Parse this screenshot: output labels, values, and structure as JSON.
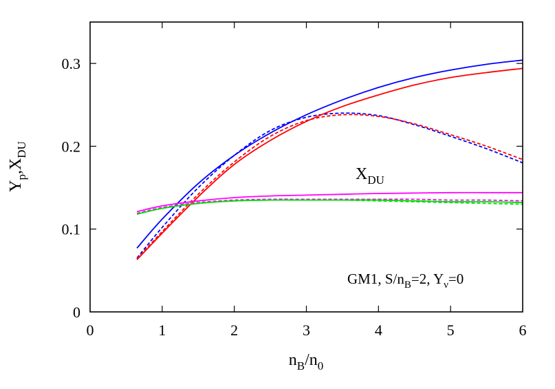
{
  "chart_data": {
    "type": "line",
    "xlabel": {
      "main": "n",
      "sub1": "B",
      "mid": "/n",
      "sub2": "0"
    },
    "ylabel": {
      "a": "Y",
      "a_sub": "p",
      "sep": ",",
      "b": "X",
      "b_sub": "DU"
    },
    "xlim": [
      0,
      6
    ],
    "ylim": [
      0,
      0.35
    ],
    "xticks": [
      0,
      1,
      2,
      3,
      4,
      5,
      6
    ],
    "xtick_labels": [
      "0",
      "1",
      "2",
      "3",
      "4",
      "5",
      "6"
    ],
    "yticks": [
      0,
      0.1,
      0.2,
      0.3
    ],
    "ytick_labels": [
      "0",
      "0.1",
      "0.2",
      "0.3"
    ],
    "grid": false,
    "annotations": {
      "xdu": {
        "main": "X",
        "sub": "DU"
      },
      "model": {
        "t1": "GM1, S/n",
        "t1_sub": "B",
        "t2": "=2, Y",
        "t2_sub": "ν",
        "t3": "=0"
      }
    },
    "series": [
      {
        "color": "#0000ff",
        "dash": "solid",
        "x": [
          0.65,
          1,
          1.5,
          2,
          2.5,
          3,
          3.5,
          4,
          4.5,
          5,
          5.5,
          6
        ],
        "y": [
          0.077,
          0.112,
          0.155,
          0.189,
          0.216,
          0.238,
          0.256,
          0.271,
          0.283,
          0.292,
          0.299,
          0.304
        ]
      },
      {
        "color": "#0000ff",
        "dash": "dashed",
        "x": [
          0.65,
          1,
          1.5,
          2,
          2.5,
          3,
          3.5,
          4,
          4.5,
          5,
          5.5,
          6
        ],
        "y": [
          0.065,
          0.102,
          0.15,
          0.189,
          0.219,
          0.235,
          0.24,
          0.237,
          0.226,
          0.212,
          0.197,
          0.18
        ]
      },
      {
        "color": "#ff0000",
        "dash": "solid",
        "x": [
          0.65,
          1,
          1.5,
          2,
          2.5,
          3,
          3.5,
          4,
          4.5,
          5,
          5.5,
          6
        ],
        "y": [
          0.063,
          0.095,
          0.139,
          0.178,
          0.207,
          0.23,
          0.248,
          0.262,
          0.274,
          0.283,
          0.289,
          0.294
        ]
      },
      {
        "color": "#ff0000",
        "dash": "dashed",
        "x": [
          0.65,
          1,
          1.5,
          2,
          2.5,
          3,
          3.5,
          4,
          4.5,
          5,
          5.5,
          6
        ],
        "y": [
          0.064,
          0.097,
          0.142,
          0.181,
          0.212,
          0.231,
          0.238,
          0.236,
          0.227,
          0.214,
          0.2,
          0.184
        ]
      },
      {
        "color": "#ff00ff",
        "dash": "solid",
        "x": [
          0.65,
          1,
          1.5,
          2,
          2.5,
          3,
          3.5,
          4,
          4.5,
          5,
          5.5,
          6
        ],
        "y": [
          0.121,
          0.128,
          0.134,
          0.138,
          0.14,
          0.141,
          0.142,
          0.143,
          0.1435,
          0.144,
          0.144,
          0.144
        ]
      },
      {
        "color": "#ff00ff",
        "dash": "dashed",
        "x": [
          0.65,
          1,
          1.5,
          2,
          2.5,
          3,
          3.5,
          4,
          4.5,
          5,
          5.5,
          6
        ],
        "y": [
          0.119,
          0.126,
          0.132,
          0.135,
          0.136,
          0.136,
          0.136,
          0.136,
          0.136,
          0.135,
          0.135,
          0.134
        ]
      },
      {
        "color": "#00dd00",
        "dash": "solid",
        "x": [
          0.65,
          1,
          1.5,
          2,
          2.5,
          3,
          3.5,
          4,
          4.5,
          5,
          5.5,
          6
        ],
        "y": [
          0.118,
          0.125,
          0.131,
          0.134,
          0.135,
          0.135,
          0.135,
          0.135,
          0.134,
          0.133,
          0.133,
          0.132
        ]
      },
      {
        "color": "#00dd00",
        "dash": "dashed",
        "x": [
          0.65,
          1,
          1.5,
          2,
          2.5,
          3,
          3.5,
          4,
          4.5,
          5,
          5.5,
          6
        ],
        "y": [
          0.118,
          0.125,
          0.131,
          0.134,
          0.135,
          0.135,
          0.135,
          0.134,
          0.133,
          0.132,
          0.131,
          0.13
        ]
      }
    ]
  }
}
